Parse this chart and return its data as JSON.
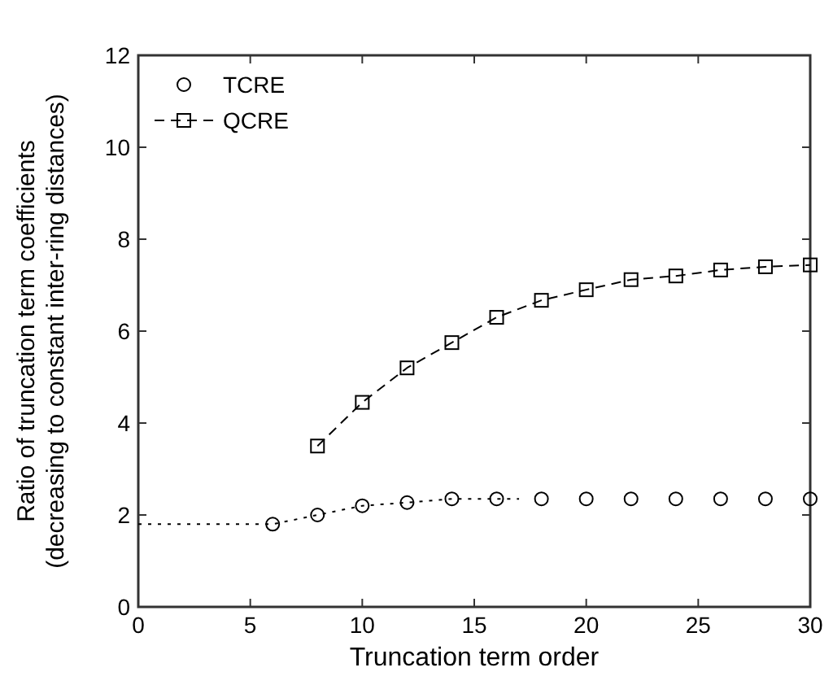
{
  "chart_data": {
    "type": "line",
    "xlabel": "Truncation term order",
    "ylabel": "Ratio of truncation term coefficients\n(decreasing to constant inter-ring distances)",
    "xlim": [
      0,
      30
    ],
    "xticks": [
      0,
      5,
      10,
      15,
      20,
      25,
      30
    ],
    "ylim": [
      0,
      12
    ],
    "yticks": [
      0,
      2,
      4,
      6,
      8,
      10,
      12
    ],
    "grid": false,
    "legend": "top left",
    "series": [
      {
        "name": "TCRE",
        "type": "scatter",
        "marker": "circle",
        "color": "#000000",
        "x": [
          6,
          8,
          10,
          12,
          14,
          16,
          18,
          20,
          22,
          24,
          26,
          28,
          30
        ],
        "values": [
          1.8,
          2.0,
          2.2,
          2.27,
          2.35,
          2.35,
          2.35,
          2.35,
          2.35,
          2.35,
          2.35,
          2.35,
          2.35
        ]
      },
      {
        "type": "line",
        "marker": "none",
        "line_style": "dotted",
        "color": "#000000",
        "x": [
          0,
          6,
          8,
          10,
          12,
          14,
          17
        ],
        "values": [
          1.8,
          1.8,
          2.0,
          2.2,
          2.27,
          2.35,
          2.35
        ]
      },
      {
        "name": "QCRE",
        "type": "line",
        "marker": "square",
        "line_style": "dashed",
        "color": "#000000",
        "x": [
          8,
          10,
          12,
          14,
          16,
          18,
          20,
          22,
          24,
          26,
          28,
          30
        ],
        "values": [
          3.5,
          4.45,
          5.2,
          5.75,
          6.3,
          6.67,
          6.9,
          7.12,
          7.2,
          7.33,
          7.4,
          7.44
        ]
      }
    ]
  }
}
